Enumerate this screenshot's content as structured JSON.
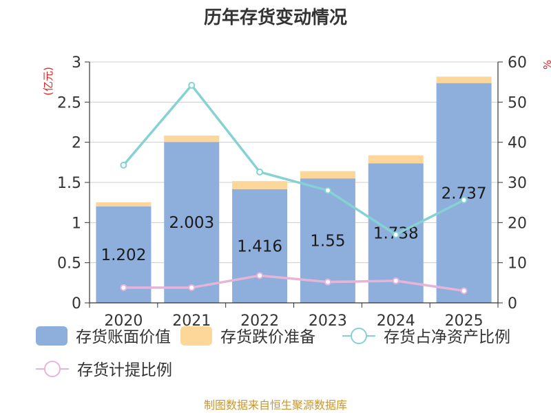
{
  "chart_data": {
    "type": "bar",
    "title": "历年存货变动情况",
    "categories": [
      "2020",
      "2021",
      "2022",
      "2023",
      "2024",
      "2025"
    ],
    "y_left": {
      "label": "(亿元)",
      "ylim": [
        0,
        3
      ],
      "ticks": [
        "0",
        "0.5",
        "1",
        "1.5",
        "2",
        "2.5",
        "3"
      ]
    },
    "y_right": {
      "label": "%",
      "ylim": [
        0,
        60
      ],
      "ticks": [
        "0",
        "10",
        "20",
        "30",
        "40",
        "50",
        "60"
      ]
    },
    "grid": true,
    "legend_position": "bottom",
    "series": [
      {
        "name": "存货账面价值",
        "type": "bar",
        "stack": "inv",
        "axis": "left",
        "color": "#8eaedb",
        "values": [
          1.202,
          2.003,
          1.416,
          1.55,
          1.738,
          2.737
        ],
        "labels": [
          "1.202",
          "2.003",
          "1.416",
          "1.55",
          "1.738",
          "2.737"
        ]
      },
      {
        "name": "存货跌价准备",
        "type": "bar",
        "stack": "inv",
        "axis": "left",
        "color": "#fdd699",
        "values": [
          0.05,
          0.08,
          0.1,
          0.09,
          0.1,
          0.08
        ]
      },
      {
        "name": "存货占净资产比例",
        "type": "line",
        "axis": "right",
        "color": "#86d1d4",
        "values": [
          34.3,
          54.2,
          32.6,
          28.0,
          17.0,
          25.6
        ]
      },
      {
        "name": "存货计提比例",
        "type": "line",
        "axis": "right",
        "color": "#e6b4d8",
        "values": [
          3.8,
          3.8,
          6.8,
          5.2,
          5.5,
          3.0
        ]
      }
    ]
  },
  "source": "制图数据来自恒生聚源数据库"
}
